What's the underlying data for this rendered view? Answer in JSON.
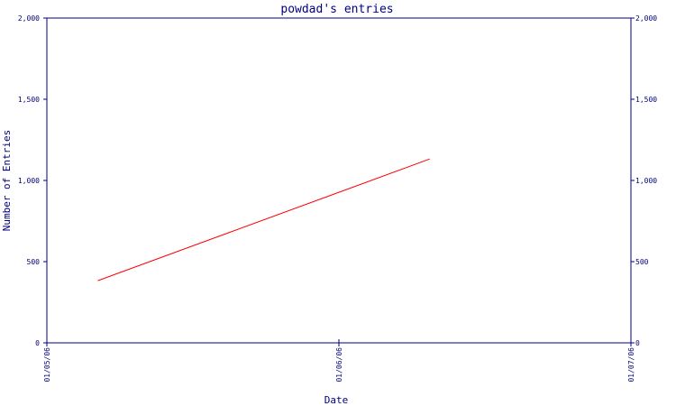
{
  "chart_data": {
    "type": "line",
    "title": "powdad's entries",
    "xlabel": "Date",
    "ylabel": "Number of Entries",
    "x_tick_labels": [
      "01/05/06",
      "01/06/06",
      "01/07/06"
    ],
    "y_ticks": [
      0,
      500,
      1000,
      1500,
      2000
    ],
    "y_tick_labels": [
      "0",
      "500",
      "1,000",
      "1,500",
      "2,000"
    ],
    "ylim": [
      0,
      2000
    ],
    "xlim": [
      "2006-01-05",
      "2006-01-07"
    ],
    "grid": false,
    "series": [
      {
        "color": "#ff0000",
        "points": [
          {
            "x": "2006-01-05 04:11",
            "y": 383
          },
          {
            "x": "2006-01-06 07:28",
            "y": 1132
          }
        ]
      }
    ],
    "colors": {
      "axis": "#000080",
      "text": "#000080",
      "line": "#ff0000",
      "background": "#ffffff"
    }
  }
}
